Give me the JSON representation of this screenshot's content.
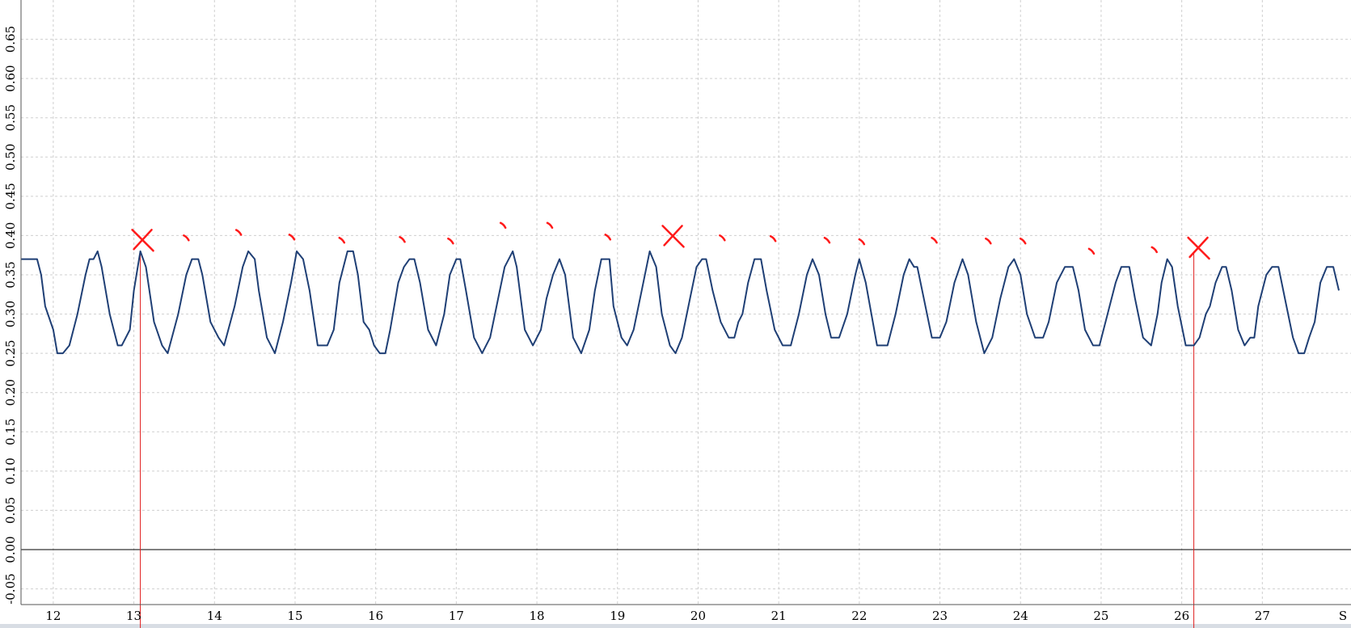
{
  "chart_data": {
    "type": "line",
    "xlabel": "",
    "ylabel": "",
    "title": "",
    "x_ticks": [
      "12",
      "13",
      "14",
      "15",
      "16",
      "17",
      "18",
      "19",
      "20",
      "21",
      "22",
      "23",
      "24",
      "25",
      "26",
      "27"
    ],
    "x_unit_label": "S",
    "y_ticks": [
      "-0.05",
      "0.00",
      "0.05",
      "0.10",
      "0.15",
      "0.20",
      "0.25",
      "0.30",
      "0.35",
      "0.40",
      "0.45",
      "0.50",
      "0.55",
      "0.60",
      "0.65"
    ],
    "xlim": [
      11.6,
      28.1
    ],
    "ylim": [
      -0.07,
      0.7
    ],
    "grid": true,
    "zero_line": 0.0,
    "series": [
      {
        "color": "#1f3f75",
        "points": [
          [
            11.6,
            0.37
          ],
          [
            11.7,
            0.37
          ],
          [
            11.8,
            0.37
          ],
          [
            11.85,
            0.35
          ],
          [
            11.9,
            0.31
          ],
          [
            12.0,
            0.28
          ],
          [
            12.05,
            0.25
          ],
          [
            12.12,
            0.25
          ],
          [
            12.2,
            0.26
          ],
          [
            12.3,
            0.3
          ],
          [
            12.4,
            0.35
          ],
          [
            12.45,
            0.37
          ],
          [
            12.5,
            0.37
          ],
          [
            12.55,
            0.38
          ],
          [
            12.6,
            0.36
          ],
          [
            12.7,
            0.3
          ],
          [
            12.8,
            0.26
          ],
          [
            12.85,
            0.26
          ],
          [
            12.95,
            0.28
          ],
          [
            13.0,
            0.33
          ],
          [
            13.08,
            0.38
          ],
          [
            13.15,
            0.36
          ],
          [
            13.25,
            0.29
          ],
          [
            13.35,
            0.26
          ],
          [
            13.42,
            0.25
          ],
          [
            13.55,
            0.3
          ],
          [
            13.65,
            0.35
          ],
          [
            13.72,
            0.37
          ],
          [
            13.8,
            0.37
          ],
          [
            13.85,
            0.35
          ],
          [
            13.95,
            0.29
          ],
          [
            14.05,
            0.27
          ],
          [
            14.12,
            0.26
          ],
          [
            14.25,
            0.31
          ],
          [
            14.35,
            0.36
          ],
          [
            14.42,
            0.38
          ],
          [
            14.5,
            0.37
          ],
          [
            14.55,
            0.33
          ],
          [
            14.65,
            0.27
          ],
          [
            14.75,
            0.25
          ],
          [
            14.85,
            0.29
          ],
          [
            14.95,
            0.34
          ],
          [
            15.02,
            0.38
          ],
          [
            15.1,
            0.37
          ],
          [
            15.18,
            0.33
          ],
          [
            15.28,
            0.26
          ],
          [
            15.4,
            0.26
          ],
          [
            15.48,
            0.28
          ],
          [
            15.55,
            0.34
          ],
          [
            15.65,
            0.38
          ],
          [
            15.72,
            0.38
          ],
          [
            15.78,
            0.35
          ],
          [
            15.85,
            0.29
          ],
          [
            15.92,
            0.28
          ],
          [
            15.98,
            0.26
          ],
          [
            16.05,
            0.25
          ],
          [
            16.12,
            0.25
          ],
          [
            16.18,
            0.28
          ],
          [
            16.28,
            0.34
          ],
          [
            16.35,
            0.36
          ],
          [
            16.42,
            0.37
          ],
          [
            16.48,
            0.37
          ],
          [
            16.55,
            0.34
          ],
          [
            16.65,
            0.28
          ],
          [
            16.75,
            0.26
          ],
          [
            16.85,
            0.3
          ],
          [
            16.92,
            0.35
          ],
          [
            17.0,
            0.37
          ],
          [
            17.05,
            0.37
          ],
          [
            17.12,
            0.33
          ],
          [
            17.22,
            0.27
          ],
          [
            17.32,
            0.25
          ],
          [
            17.42,
            0.27
          ],
          [
            17.52,
            0.32
          ],
          [
            17.6,
            0.36
          ],
          [
            17.7,
            0.38
          ],
          [
            17.75,
            0.36
          ],
          [
            17.85,
            0.28
          ],
          [
            17.95,
            0.26
          ],
          [
            18.05,
            0.28
          ],
          [
            18.12,
            0.32
          ],
          [
            18.2,
            0.35
          ],
          [
            18.28,
            0.37
          ],
          [
            18.35,
            0.35
          ],
          [
            18.45,
            0.27
          ],
          [
            18.55,
            0.25
          ],
          [
            18.65,
            0.28
          ],
          [
            18.72,
            0.33
          ],
          [
            18.8,
            0.37
          ],
          [
            18.9,
            0.37
          ],
          [
            18.95,
            0.31
          ],
          [
            19.05,
            0.27
          ],
          [
            19.12,
            0.26
          ],
          [
            19.2,
            0.28
          ],
          [
            19.3,
            0.33
          ],
          [
            19.4,
            0.38
          ],
          [
            19.48,
            0.36
          ],
          [
            19.55,
            0.3
          ],
          [
            19.65,
            0.26
          ],
          [
            19.72,
            0.25
          ],
          [
            19.8,
            0.27
          ],
          [
            19.9,
            0.32
          ],
          [
            19.98,
            0.36
          ],
          [
            20.05,
            0.37
          ],
          [
            20.1,
            0.37
          ],
          [
            20.18,
            0.33
          ],
          [
            20.28,
            0.29
          ],
          [
            20.38,
            0.27
          ],
          [
            20.45,
            0.27
          ],
          [
            20.5,
            0.29
          ],
          [
            20.55,
            0.3
          ],
          [
            20.62,
            0.34
          ],
          [
            20.7,
            0.37
          ],
          [
            20.78,
            0.37
          ],
          [
            20.85,
            0.33
          ],
          [
            20.95,
            0.28
          ],
          [
            21.05,
            0.26
          ],
          [
            21.15,
            0.26
          ],
          [
            21.25,
            0.3
          ],
          [
            21.35,
            0.35
          ],
          [
            21.42,
            0.37
          ],
          [
            21.5,
            0.35
          ],
          [
            21.58,
            0.3
          ],
          [
            21.65,
            0.27
          ],
          [
            21.75,
            0.27
          ],
          [
            21.85,
            0.3
          ],
          [
            21.95,
            0.35
          ],
          [
            22.0,
            0.37
          ],
          [
            22.08,
            0.34
          ],
          [
            22.15,
            0.3
          ],
          [
            22.22,
            0.26
          ],
          [
            22.35,
            0.26
          ],
          [
            22.45,
            0.3
          ],
          [
            22.55,
            0.35
          ],
          [
            22.62,
            0.37
          ],
          [
            22.68,
            0.36
          ],
          [
            22.72,
            0.36
          ],
          [
            22.8,
            0.32
          ],
          [
            22.9,
            0.27
          ],
          [
            23.0,
            0.27
          ],
          [
            23.08,
            0.29
          ],
          [
            23.18,
            0.34
          ],
          [
            23.28,
            0.37
          ],
          [
            23.35,
            0.35
          ],
          [
            23.45,
            0.29
          ],
          [
            23.55,
            0.25
          ],
          [
            23.65,
            0.27
          ],
          [
            23.75,
            0.32
          ],
          [
            23.85,
            0.36
          ],
          [
            23.92,
            0.37
          ],
          [
            24.0,
            0.35
          ],
          [
            24.08,
            0.3
          ],
          [
            24.18,
            0.27
          ],
          [
            24.28,
            0.27
          ],
          [
            24.35,
            0.29
          ],
          [
            24.45,
            0.34
          ],
          [
            24.55,
            0.36
          ],
          [
            24.65,
            0.36
          ],
          [
            24.72,
            0.33
          ],
          [
            24.8,
            0.28
          ],
          [
            24.9,
            0.26
          ],
          [
            24.98,
            0.26
          ],
          [
            25.08,
            0.3
          ],
          [
            25.18,
            0.34
          ],
          [
            25.25,
            0.36
          ],
          [
            25.35,
            0.36
          ],
          [
            25.42,
            0.32
          ],
          [
            25.52,
            0.27
          ],
          [
            25.62,
            0.26
          ],
          [
            25.7,
            0.3
          ],
          [
            25.75,
            0.34
          ],
          [
            25.82,
            0.37
          ],
          [
            25.88,
            0.36
          ],
          [
            25.95,
            0.31
          ],
          [
            26.05,
            0.26
          ],
          [
            26.15,
            0.26
          ],
          [
            26.22,
            0.27
          ],
          [
            26.3,
            0.3
          ],
          [
            26.35,
            0.31
          ],
          [
            26.42,
            0.34
          ],
          [
            26.5,
            0.36
          ],
          [
            26.55,
            0.36
          ],
          [
            26.62,
            0.33
          ],
          [
            26.7,
            0.28
          ],
          [
            26.78,
            0.26
          ],
          [
            26.85,
            0.27
          ],
          [
            26.9,
            0.27
          ],
          [
            26.95,
            0.31
          ],
          [
            27.05,
            0.35
          ],
          [
            27.12,
            0.36
          ],
          [
            27.2,
            0.36
          ],
          [
            27.28,
            0.32
          ],
          [
            27.38,
            0.27
          ],
          [
            27.45,
            0.25
          ],
          [
            27.52,
            0.25
          ],
          [
            27.58,
            0.27
          ],
          [
            27.65,
            0.29
          ],
          [
            27.72,
            0.34
          ],
          [
            27.8,
            0.36
          ],
          [
            27.88,
            0.36
          ],
          [
            27.95,
            0.33
          ]
        ]
      }
    ],
    "cursor_lines_x": [
      13.08,
      26.15
    ],
    "annotations": [
      {
        "type": "cross",
        "x": 13.1,
        "y": 0.395
      },
      {
        "type": "cross",
        "x": 19.68,
        "y": 0.4
      },
      {
        "type": "cross",
        "x": 26.2,
        "y": 0.385
      },
      {
        "type": "tick",
        "x": 13.67,
        "y": 0.396
      },
      {
        "type": "tick",
        "x": 14.32,
        "y": 0.403
      },
      {
        "type": "tick",
        "x": 14.98,
        "y": 0.397
      },
      {
        "type": "tick",
        "x": 15.6,
        "y": 0.393
      },
      {
        "type": "tick",
        "x": 16.35,
        "y": 0.394
      },
      {
        "type": "tick",
        "x": 16.95,
        "y": 0.392
      },
      {
        "type": "tick",
        "x": 17.6,
        "y": 0.412
      },
      {
        "type": "tick",
        "x": 18.18,
        "y": 0.412
      },
      {
        "type": "tick",
        "x": 18.9,
        "y": 0.397
      },
      {
        "type": "tick",
        "x": 20.32,
        "y": 0.396
      },
      {
        "type": "tick",
        "x": 20.95,
        "y": 0.395
      },
      {
        "type": "tick",
        "x": 21.62,
        "y": 0.393
      },
      {
        "type": "tick",
        "x": 22.05,
        "y": 0.391
      },
      {
        "type": "tick",
        "x": 22.95,
        "y": 0.393
      },
      {
        "type": "tick",
        "x": 23.62,
        "y": 0.392
      },
      {
        "type": "tick",
        "x": 24.05,
        "y": 0.392
      },
      {
        "type": "tick",
        "x": 24.9,
        "y": 0.379
      },
      {
        "type": "tick",
        "x": 25.68,
        "y": 0.381
      }
    ],
    "colors": {
      "line": "#1f3f75",
      "cursor": "#e02020",
      "annotation": "#ff1a1a",
      "grid": "#cfcfcf",
      "zero": "#000000",
      "background": "#ffffff",
      "frame": "#d8dde4"
    }
  }
}
